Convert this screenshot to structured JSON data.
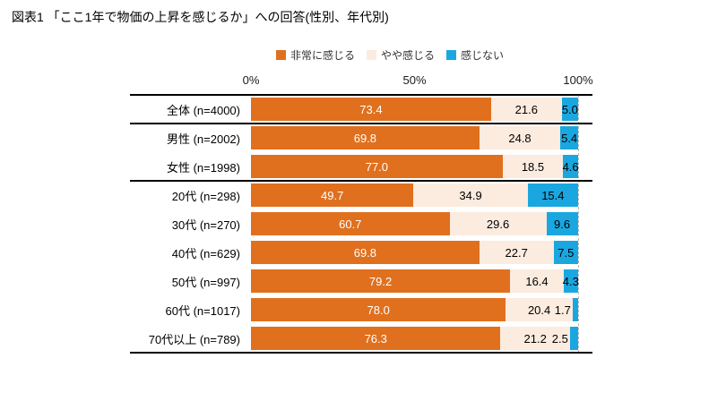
{
  "title": "図表1 「ここ1年で物価の上昇を感じるか」への回答(性別、年代別)",
  "legend": [
    {
      "label": "非常に感じる",
      "color": "#E0701E"
    },
    {
      "label": "やや感じる",
      "color": "#FCEBDF"
    },
    {
      "label": "感じない",
      "color": "#1AA7E0"
    }
  ],
  "axis": {
    "ticks": [
      {
        "label": "0%",
        "pos": 0
      },
      {
        "label": "50%",
        "pos": 50
      },
      {
        "label": "100%",
        "pos": 100
      }
    ]
  },
  "chart_data": {
    "type": "bar",
    "orientation": "horizontal",
    "stacked": true,
    "title": "図表1 「ここ1年で物価の上昇を感じるか」への回答(性別、年代別)",
    "categories": [
      "全体 (n=4000)",
      "男性 (n=2002)",
      "女性 (n=1998)",
      "20代 (n=298)",
      "30代 (n=270)",
      "40代 (n=629)",
      "50代 (n=997)",
      "60代 (n=1017)",
      "70代以上 (n=789)"
    ],
    "series": [
      {
        "name": "非常に感じる",
        "key": "strongly-feel",
        "values": [
          73.4,
          69.8,
          77.0,
          49.7,
          60.7,
          69.8,
          79.2,
          78.0,
          76.3
        ]
      },
      {
        "name": "やや感じる",
        "key": "somewhat-feel",
        "values": [
          21.6,
          24.8,
          18.5,
          34.9,
          29.6,
          22.7,
          16.4,
          20.4,
          21.2
        ]
      },
      {
        "name": "感じない",
        "key": "not-feel",
        "values": [
          5.0,
          5.4,
          4.6,
          15.4,
          9.6,
          7.5,
          4.3,
          1.7,
          2.5
        ]
      }
    ],
    "xlim": [
      0,
      100
    ],
    "unit": "%",
    "row_groups": [
      1,
      2,
      6
    ],
    "legend_position": "top"
  }
}
